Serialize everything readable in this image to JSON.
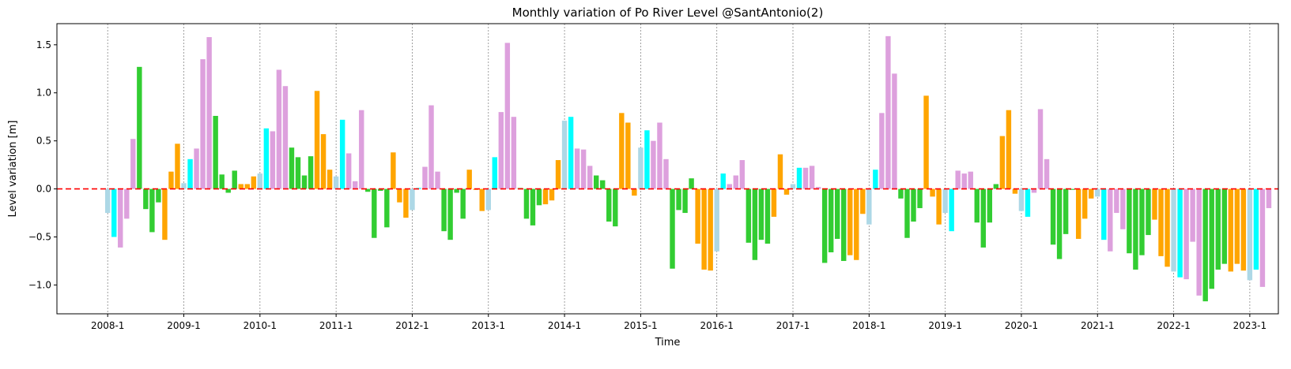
{
  "chart_data": {
    "type": "bar",
    "title": "Monthly variation of Po River Level @SantAntonio(2)",
    "xlabel": "Time",
    "ylabel": "Level variation [m]",
    "ylim": [
      -1.3,
      1.72
    ],
    "xlim_months": [
      -8,
      184.5
    ],
    "yticks": [
      1.5,
      1.0,
      0.5,
      0.0,
      -0.5,
      -1.0
    ],
    "ytick_labels": [
      "1.5",
      "1.0",
      "0.5",
      "0.0",
      "−0.5",
      "−1.0"
    ],
    "xtick_labels": [
      "2008-1",
      "2009-1",
      "2010-1",
      "2011-1",
      "2012-1",
      "2013-1",
      "2014-1",
      "2015-1",
      "2016-1",
      "2017-1",
      "2018-1",
      "2019-1",
      "2020-1",
      "2021-1",
      "2022-1",
      "2023-1"
    ],
    "grid": "vertical dotted lines at each January",
    "zero_line": {
      "value": 0,
      "color": "#ff0000",
      "style": "dashed"
    },
    "season_colors": {
      "winter_light": "#add8e6",
      "winter_cyan": "#00ffff",
      "spring": "#dda0dd",
      "summer": "#32cd32",
      "autumn": "#ffa500"
    },
    "month_color_keys": [
      "winter_cyan",
      "winter_cyan",
      "spring",
      "spring",
      "spring",
      "summer",
      "summer",
      "summer",
      "summer",
      "autumn",
      "autumn",
      "autumn"
    ],
    "first_month_color_override": "winter_light",
    "start": "2008-01",
    "values": [
      -0.25,
      -0.5,
      -0.61,
      -0.31,
      0.52,
      1.27,
      -0.21,
      -0.45,
      -0.14,
      -0.53,
      0.18,
      0.47,
      0.06,
      0.31,
      0.42,
      1.35,
      1.58,
      0.76,
      0.15,
      -0.04,
      0.19,
      0.05,
      0.05,
      0.13,
      0.16,
      0.63,
      0.6,
      1.24,
      1.07,
      0.43,
      0.33,
      0.14,
      0.34,
      1.02,
      0.57,
      0.2,
      0.13,
      0.72,
      0.37,
      0.08,
      0.82,
      -0.03,
      -0.51,
      -0.02,
      -0.4,
      0.38,
      -0.14,
      -0.3,
      -0.22,
      0.01,
      0.23,
      0.87,
      0.18,
      -0.44,
      -0.53,
      -0.04,
      -0.31,
      0.2,
      -0.01,
      -0.23,
      -0.22,
      0.33,
      0.8,
      1.52,
      0.75,
      0.01,
      -0.31,
      -0.38,
      -0.17,
      -0.16,
      -0.12,
      0.3,
      0.71,
      0.75,
      0.42,
      0.41,
      0.24,
      0.14,
      0.09,
      -0.34,
      -0.39,
      0.79,
      0.69,
      -0.07,
      0.43,
      0.61,
      0.5,
      0.69,
      0.31,
      -0.83,
      -0.22,
      -0.25,
      0.11,
      -0.57,
      -0.84,
      -0.85,
      -0.65,
      0.16,
      0.05,
      0.14,
      0.3,
      -0.56,
      -0.74,
      -0.53,
      -0.57,
      -0.29,
      0.36,
      -0.06,
      0.05,
      0.22,
      0.22,
      0.24,
      0.02,
      -0.77,
      -0.66,
      -0.52,
      -0.75,
      -0.69,
      -0.74,
      -0.26,
      -0.37,
      0.2,
      0.79,
      1.59,
      1.2,
      -0.1,
      -0.51,
      -0.34,
      -0.2,
      0.97,
      -0.08,
      -0.37,
      -0.25,
      -0.44,
      0.19,
      0.16,
      0.18,
      -0.35,
      -0.61,
      -0.35,
      0.05,
      0.55,
      0.82,
      -0.05,
      -0.23,
      -0.29,
      -0.04,
      0.83,
      0.31,
      -0.58,
      -0.73,
      -0.47,
      -0.01,
      -0.52,
      -0.31,
      -0.1,
      -0.08,
      -0.53,
      -0.65,
      -0.25,
      -0.42,
      -0.67,
      -0.84,
      -0.69,
      -0.48,
      -0.32,
      -0.7,
      -0.81,
      -0.86,
      -0.92,
      -0.94,
      -0.55,
      -1.11,
      -1.17,
      -1.04,
      -0.84,
      -0.78,
      -0.86,
      -0.78,
      -0.85,
      -0.95,
      -0.84,
      -1.02,
      -0.2
    ]
  }
}
